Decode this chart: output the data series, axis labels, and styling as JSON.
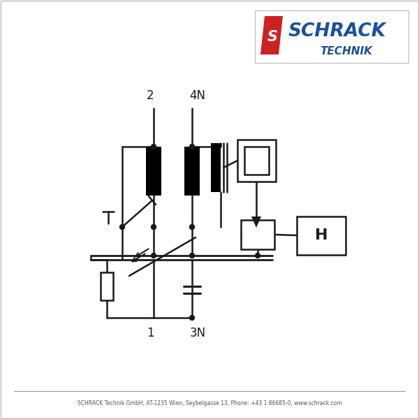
{
  "bg_color": "#ffffff",
  "line_color": "#1a1a1a",
  "lw": 1.8,
  "logo_color": "#1a4fa0",
  "logo_red": "#cc2222",
  "footer_text": "SCHRACK Technik GmbH, AT-1235 Wien, Seybelgasse 13, Phone: +43 1 86685-0, www.schrack.com",
  "label_2": "2",
  "label_4N": "4N",
  "label_1": "1",
  "label_3N": "3N",
  "label_H": "H",
  "border_color": "#bbbbbb"
}
